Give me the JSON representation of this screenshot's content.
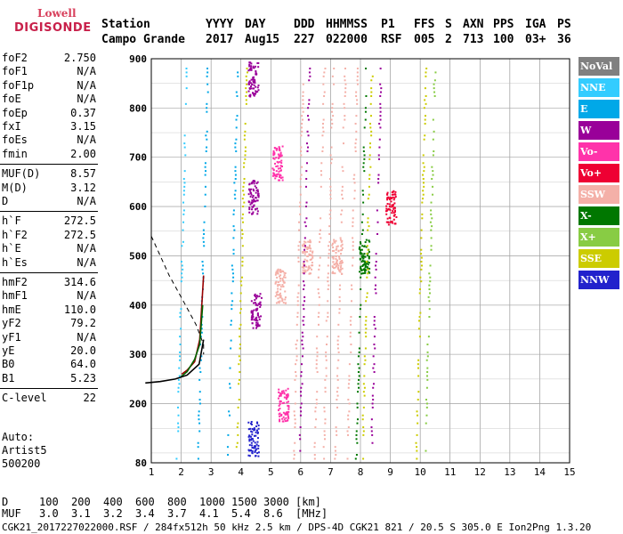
{
  "logo": {
    "line1": "Lowell",
    "line2": "DIGISONDE"
  },
  "header": {
    "row1": [
      "Station",
      "YYYY",
      "DAY",
      "DDD",
      "HHMMSS",
      "P1",
      "FFS",
      "S",
      "AXN",
      "PPS",
      "IGA",
      "PS"
    ],
    "row2": [
      "Campo Grande",
      "2017",
      "Aug15",
      "227",
      "022000",
      "RSF",
      "005",
      "2",
      "713",
      "100",
      "03+",
      "36"
    ]
  },
  "params_group1": [
    {
      "k": "foF2",
      "v": "2.750"
    },
    {
      "k": "foF1",
      "v": "N/A"
    },
    {
      "k": "foF1p",
      "v": "N/A"
    },
    {
      "k": "foE",
      "v": "N/A"
    },
    {
      "k": "foEp",
      "v": "0.37"
    },
    {
      "k": "fxI",
      "v": "3.15"
    },
    {
      "k": "foEs",
      "v": "N/A"
    },
    {
      "k": "fmin",
      "v": "2.00"
    }
  ],
  "params_group2": [
    {
      "k": "MUF(D)",
      "v": "8.57"
    },
    {
      "k": "M(D)",
      "v": "3.12"
    },
    {
      "k": "D",
      "v": "N/A"
    }
  ],
  "params_group3": [
    {
      "k": "h`F",
      "v": "272.5"
    },
    {
      "k": "h`F2",
      "v": "272.5"
    },
    {
      "k": "h`E",
      "v": "N/A"
    },
    {
      "k": "h`Es",
      "v": "N/A"
    }
  ],
  "params_group4": [
    {
      "k": "hmF2",
      "v": "314.6"
    },
    {
      "k": "hmF1",
      "v": "N/A"
    },
    {
      "k": "hmE",
      "v": "110.0"
    },
    {
      "k": "yF2",
      "v": "79.2"
    },
    {
      "k": "yF1",
      "v": "N/A"
    },
    {
      "k": "yE",
      "v": "20.0"
    },
    {
      "k": "B0",
      "v": "64.0"
    },
    {
      "k": "B1",
      "v": "5.23"
    }
  ],
  "params_group5": [
    {
      "k": "C-level",
      "v": "22"
    }
  ],
  "auto": {
    "line1": "Auto:",
    "line2": "Artist5",
    "line3": "500200"
  },
  "legend": [
    {
      "label": "NoVal",
      "color": "#808080"
    },
    {
      "label": "NNE",
      "color": "#33ccff"
    },
    {
      "label": "E",
      "color": "#00a8e8"
    },
    {
      "label": "W",
      "color": "#990099"
    },
    {
      "label": "Vo-",
      "color": "#ff33aa"
    },
    {
      "label": "Vo+",
      "color": "#ee0033"
    },
    {
      "label": "SSW",
      "color": "#f4b0a8"
    },
    {
      "label": "X-",
      "color": "#007700"
    },
    {
      "label": "X+",
      "color": "#88cc44"
    },
    {
      "label": "SSE",
      "color": "#cccc00"
    },
    {
      "label": "NNW",
      "color": "#2222cc"
    }
  ],
  "dtable": {
    "d_label": "D",
    "d_values": [
      "100",
      "200",
      "400",
      "600",
      "800",
      "1000",
      "1500",
      "3000"
    ],
    "d_unit": "[km]",
    "muf_label": "MUF",
    "muf_values": [
      "3.0",
      "3.1",
      "3.2",
      "3.4",
      "3.7",
      "4.1",
      "5.4",
      "8.6"
    ],
    "muf_unit": "[MHz]"
  },
  "footer": "CGK21_2017227022000.RSF / 284fx512h 50 kHz 2.5 km / DPS-4D CGK21 821 / 20.5 S 305.0 E Ion2Png 1.3.20",
  "chart_data": {
    "type": "scatter",
    "x_ticks": [
      1,
      2,
      3,
      4,
      5,
      6,
      7,
      8,
      9,
      10,
      11,
      12,
      13,
      14,
      15
    ],
    "y_ticks": [
      80,
      200,
      300,
      400,
      500,
      600,
      700,
      800,
      900
    ],
    "xlim": [
      1,
      15
    ],
    "ylim": [
      80,
      900
    ],
    "grid": true,
    "traces": [
      {
        "x": [
          2.02,
          2.2,
          2.45,
          2.62,
          2.75
        ],
        "y": [
          260,
          268,
          285,
          330,
          460
        ],
        "color": "#990000"
      },
      {
        "x": [
          2.0,
          2.2,
          2.45,
          2.62,
          2.72
        ],
        "y": [
          255,
          265,
          290,
          320,
          400
        ],
        "color": "#006600"
      },
      {
        "x": [
          0.8,
          1.3,
          1.8,
          2.2,
          2.6,
          2.75
        ],
        "y": [
          242,
          245,
          250,
          258,
          280,
          330
        ],
        "color": "#000000"
      }
    ],
    "dashed_curve": {
      "x": [
        1.0,
        1.6,
        2.1,
        2.5,
        2.75,
        2.75
      ],
      "y": [
        540,
        460,
        405,
        360,
        320,
        300
      ]
    },
    "echo_blobs": [
      {
        "x": 4.4,
        "y": 860,
        "color": "#990099"
      },
      {
        "x": 4.4,
        "y": 620,
        "color": "#990099"
      },
      {
        "x": 4.5,
        "y": 390,
        "color": "#990099"
      },
      {
        "x": 4.4,
        "y": 130,
        "color": "#2222cc"
      },
      {
        "x": 5.2,
        "y": 690,
        "color": "#ff33aa"
      },
      {
        "x": 5.3,
        "y": 440,
        "color": "#f4b0a8"
      },
      {
        "x": 5.4,
        "y": 200,
        "color": "#ff33aa"
      },
      {
        "x": 6.2,
        "y": 500,
        "color": "#f4b0a8"
      },
      {
        "x": 7.2,
        "y": 500,
        "color": "#f4b0a8"
      },
      {
        "x": 8.1,
        "y": 500,
        "color": "#007700"
      },
      {
        "x": 9.0,
        "y": 600,
        "color": "#ee0033"
      }
    ]
  }
}
